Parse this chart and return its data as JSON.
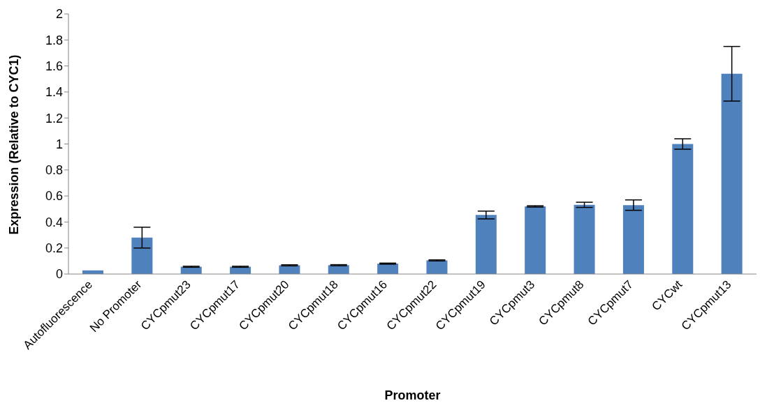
{
  "chart_data": {
    "type": "bar",
    "xlabel": "Promoter",
    "ylabel": "Expression (Relative to CYC1)",
    "categories": [
      "Autofluorescence",
      "No Promoter",
      "CYCpmut23",
      "CYCpmut17",
      "CYCpmut20",
      "CYCpmut18",
      "CYCpmut16",
      "CYCpmut22",
      "CYCpmut19",
      "CYCpmut3",
      "CYCpmut8",
      "CYCpmut7",
      "CYCwt",
      "CYCpmut13"
    ],
    "values": [
      0.028,
      0.28,
      0.056,
      0.056,
      0.067,
      0.068,
      0.08,
      0.105,
      0.454,
      0.52,
      0.532,
      0.53,
      1.0,
      1.54
    ],
    "errors": [
      null,
      0.08,
      0.004,
      0.004,
      0.004,
      0.004,
      0.004,
      0.004,
      0.03,
      0.005,
      0.02,
      0.04,
      0.04,
      0.21
    ],
    "color": "#4f81bd",
    "ylim": [
      0,
      2
    ],
    "yticks": [
      0,
      0.2,
      0.4,
      0.6,
      0.8,
      1,
      1.2,
      1.4,
      1.6,
      1.8,
      2
    ],
    "grid": false,
    "legend": false
  }
}
